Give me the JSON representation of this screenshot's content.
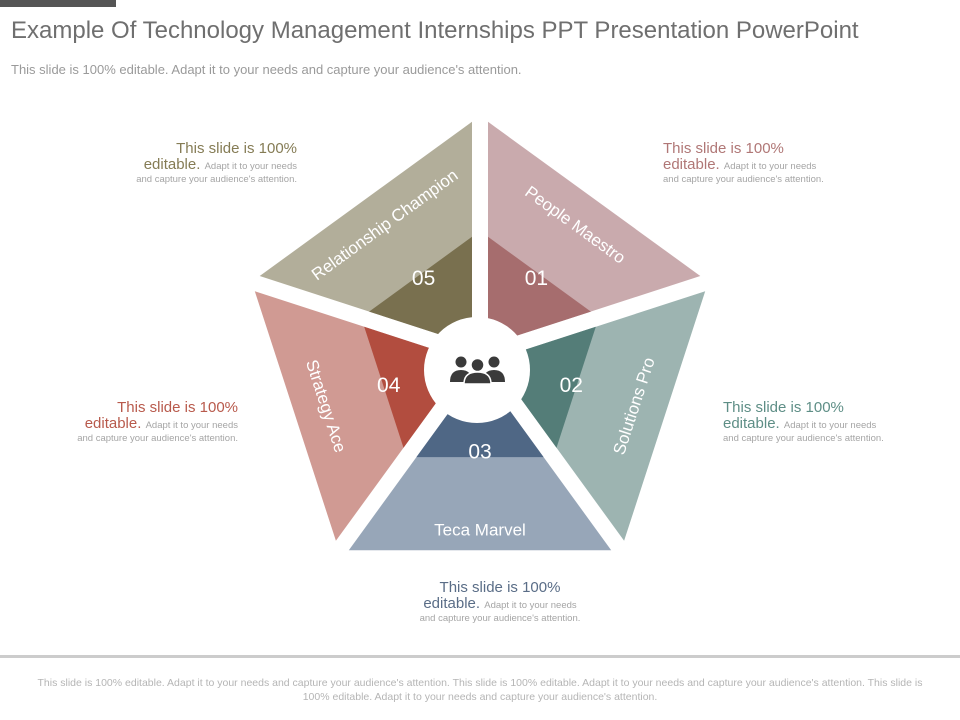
{
  "slide": {
    "title": "Example Of Technology Management Internships PPT Presentation PowerPoint",
    "subtitle": "This slide is 100% editable. Adapt it to your needs and capture your audience's attention.",
    "footer": "This slide is 100% editable. Adapt it to your needs and capture your audience's attention. This slide is 100% editable. Adapt it to your needs and capture your audience's attention. This slide is 100% editable. Adapt it to your needs and capture your audience's attention."
  },
  "center": {
    "icon": "people-group-icon"
  },
  "segments": [
    {
      "number": "01",
      "label": "People Maestro",
      "outer_color": "#c9aaad",
      "inner_color": "#a66d6e"
    },
    {
      "number": "02",
      "label": "Solutions Pro",
      "outer_color": "#9db4b1",
      "inner_color": "#547d78"
    },
    {
      "number": "03",
      "label": "Teca Marvel",
      "outer_color": "#97a6b8",
      "inner_color": "#4f6785"
    },
    {
      "number": "04",
      "label": "Strategy Ace",
      "outer_color": "#d09a93",
      "inner_color": "#b24d3f"
    },
    {
      "number": "05",
      "label": "Relationship Champion",
      "outer_color": "#b2ae9a",
      "inner_color": "#79704f"
    }
  ],
  "callouts": [
    {
      "head": "This slide is 100%",
      "head2": "editable.",
      "desc1": "Adapt it to your needs",
      "desc2": "and capture your audience's attention.",
      "color": "#b07776"
    },
    {
      "head": "This slide is 100%",
      "head2": "editable.",
      "desc1": "Adapt it to your needs",
      "desc2": "and capture your audience's attention.",
      "color": "#5e8e86"
    },
    {
      "head": "This slide is 100%",
      "head2": "editable.",
      "desc1": "Adapt it to your needs",
      "desc2": "and capture your audience's attention.",
      "color": "#5a6d87"
    },
    {
      "head": "This slide is 100%",
      "head2": "editable.",
      "desc1": "Adapt it to your needs",
      "desc2": "and capture your audience's attention.",
      "color": "#b85a4c"
    },
    {
      "head": "This slide is 100%",
      "head2": "editable.",
      "desc1": "Adapt it to your needs",
      "desc2": "and capture your audience's attention.",
      "color": "#857c55"
    }
  ]
}
